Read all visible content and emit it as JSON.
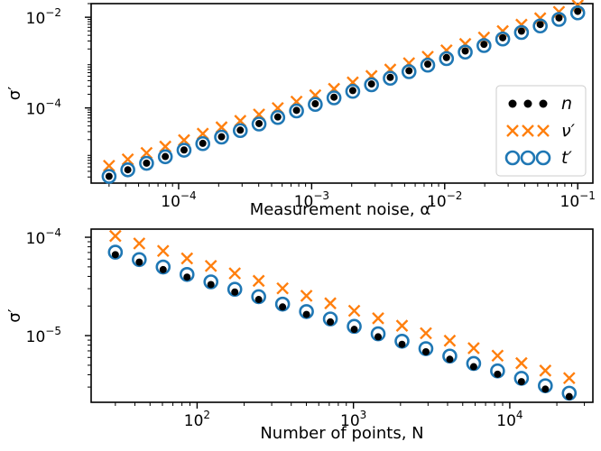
{
  "chart_data": [
    {
      "type": "scatter",
      "xscale": "log",
      "yscale": "log",
      "xlabel": "Measurement noise, α′",
      "ylabel": "σ′",
      "xlim": [
        2.2e-05,
        0.13
      ],
      "ylim": [
        2.2e-06,
        0.02
      ],
      "x_ticks": [
        {
          "value": 0.0001,
          "label": "10",
          "exp": "−4"
        },
        {
          "value": 0.001,
          "label": "10",
          "exp": "−3"
        },
        {
          "value": 0.01,
          "label": "10",
          "exp": "−2"
        },
        {
          "value": 0.1,
          "label": "10",
          "exp": "−1"
        }
      ],
      "y_ticks": [
        {
          "value": 0.0001,
          "label": "10",
          "exp": "−4"
        },
        {
          "value": 0.01,
          "label": "10",
          "exp": "−2"
        }
      ],
      "x_range": [
        3e-05,
        0.1
      ],
      "n_points": 26,
      "series": [
        {
          "name": "n",
          "marker": "dot",
          "color": "#000000",
          "y_start": 3.1e-06,
          "y_end": 0.0135
        },
        {
          "name": "ν′",
          "marker": "x",
          "color": "#ff7f0e",
          "y_start": 5.3e-06,
          "y_end": 0.0182
        },
        {
          "name": "t′",
          "marker": "circle",
          "color": "#1f77b4",
          "y_start": 3.1e-06,
          "y_end": 0.0125
        }
      ],
      "legend": {
        "position": "lower-right",
        "entries": [
          {
            "label": "n",
            "italic_prime": false
          },
          {
            "label": "ν′",
            "italic_prime": true
          },
          {
            "label": "t′",
            "italic_prime": true
          }
        ]
      },
      "grid": false
    },
    {
      "type": "scatter",
      "xscale": "log",
      "yscale": "log",
      "xlabel": "Number of points, N",
      "ylabel": "σ′",
      "xlim": [
        21,
        34000
      ],
      "ylim": [
        2.1e-06,
        0.000121
      ],
      "x_ticks": [
        {
          "value": 100,
          "label": "10",
          "exp": "2"
        },
        {
          "value": 1000,
          "label": "10",
          "exp": "3"
        },
        {
          "value": 10000,
          "label": "10",
          "exp": "4"
        }
      ],
      "y_ticks": [
        {
          "value": 1e-05,
          "label": "10",
          "exp": "−5"
        },
        {
          "value": 0.0001,
          "label": "10",
          "exp": "−4"
        }
      ],
      "x_range": [
        30,
        24000
      ],
      "n_points": 20,
      "series": [
        {
          "name": "n",
          "marker": "dot",
          "color": "#000000",
          "y_start": 6.65e-05,
          "y_end": 2.4e-06
        },
        {
          "name": "ν′",
          "marker": "x",
          "color": "#ff7f0e",
          "y_start": 0.000103,
          "y_end": 3.7e-06
        },
        {
          "name": "t′",
          "marker": "circle",
          "color": "#1f77b4",
          "y_start": 7.05e-05,
          "y_end": 2.6e-06
        }
      ],
      "grid": false
    }
  ]
}
